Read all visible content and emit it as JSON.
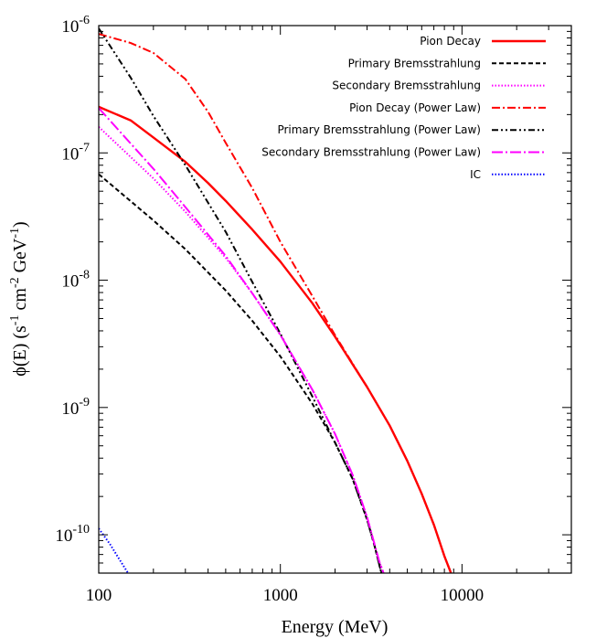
{
  "chart_data": {
    "type": "line",
    "x_scale": "log",
    "y_scale": "log",
    "xlim": [
      100,
      40000
    ],
    "ylim": [
      5e-11,
      1e-06
    ],
    "xlabel": "Energy  (MeV)",
    "ylabel": {
      "main": "ϕ(E)  (s",
      "exp1": "-1",
      "mid1": " cm",
      "exp2": "-2",
      "mid2": " GeV",
      "exp3": "-1",
      "close": ")"
    },
    "x_ticks": [
      {
        "value": 100,
        "label": "100"
      },
      {
        "value": 1000,
        "label": "1000"
      },
      {
        "value": 10000,
        "label": "10000"
      }
    ],
    "y_ticks": [
      {
        "value": 1e-06,
        "base": "10",
        "exp": "-6"
      },
      {
        "value": 1e-07,
        "base": "10",
        "exp": "-7"
      },
      {
        "value": 1e-08,
        "base": "10",
        "exp": "-8"
      },
      {
        "value": 1e-09,
        "base": "10",
        "exp": "-9"
      },
      {
        "value": 1e-10,
        "base": "10",
        "exp": "-10"
      }
    ],
    "grid": false,
    "legend_position": "top-right",
    "series": [
      {
        "name": "Pion Decay",
        "color": "#ff0000",
        "dash": "solid",
        "points": [
          [
            100,
            2.3e-07
          ],
          [
            150,
            1.8e-07
          ],
          [
            200,
            1.32e-07
          ],
          [
            300,
            8.5e-08
          ],
          [
            400,
            5.8e-08
          ],
          [
            500,
            4.2e-08
          ],
          [
            700,
            2.5e-08
          ],
          [
            1000,
            1.4e-08
          ],
          [
            1500,
            6.6e-09
          ],
          [
            2000,
            3.6e-09
          ],
          [
            3000,
            1.45e-09
          ],
          [
            4000,
            7.2e-10
          ],
          [
            5000,
            3.8e-10
          ],
          [
            6000,
            2.1e-10
          ],
          [
            7000,
            1.2e-10
          ],
          [
            8000,
            6.8e-11
          ],
          [
            8700,
            5e-11
          ]
        ]
      },
      {
        "name": "Primary Bremsstrahlung",
        "color": "#000000",
        "dash": "dashed",
        "points": [
          [
            100,
            6.8e-08
          ],
          [
            200,
            2.95e-08
          ],
          [
            300,
            1.75e-08
          ],
          [
            500,
            8.3e-09
          ],
          [
            700,
            4.8e-09
          ],
          [
            1000,
            2.52e-09
          ],
          [
            1500,
            1.07e-09
          ],
          [
            2000,
            5.3e-10
          ],
          [
            2500,
            2.75e-10
          ],
          [
            3000,
            1.32e-10
          ],
          [
            3300,
            8.2e-11
          ],
          [
            3600,
            5e-11
          ]
        ]
      },
      {
        "name": "Secondary Bremsstrahlung",
        "color": "#ff00ff",
        "dash": "dotted",
        "points": [
          [
            100,
            1.6e-07
          ],
          [
            200,
            6.3e-08
          ],
          [
            300,
            3.45e-08
          ],
          [
            500,
            1.5e-08
          ],
          [
            700,
            7.9e-09
          ],
          [
            1000,
            3.72e-09
          ],
          [
            1500,
            1.38e-09
          ],
          [
            2000,
            6.2e-10
          ],
          [
            2500,
            2.95e-10
          ],
          [
            3000,
            1.38e-10
          ],
          [
            3500,
            6.2e-11
          ],
          [
            3700,
            5e-11
          ]
        ]
      },
      {
        "name": "Pion Decay (Power Law)",
        "color": "#ff0000",
        "dash": "dashdot",
        "points": [
          [
            100,
            8.6e-07
          ],
          [
            150,
            7.3e-07
          ],
          [
            200,
            6.1e-07
          ],
          [
            300,
            3.8e-07
          ],
          [
            400,
            2.1e-07
          ],
          [
            500,
            1.2e-07
          ],
          [
            700,
            5.3e-08
          ],
          [
            1000,
            2e-08
          ],
          [
            1500,
            7.5e-09
          ],
          [
            2000,
            3.7e-09
          ],
          [
            3000,
            1.45e-09
          ],
          [
            4000,
            7.2e-10
          ],
          [
            5000,
            3.8e-10
          ],
          [
            6000,
            2.1e-10
          ],
          [
            7000,
            1.2e-10
          ],
          [
            8000,
            6.8e-11
          ],
          [
            8700,
            5e-11
          ]
        ]
      },
      {
        "name": "Primary Bremsstrahlung (Power Law)",
        "color": "#000000",
        "dash": "dashdotdot",
        "points": [
          [
            100,
            9.5e-07
          ],
          [
            150,
            3.9e-07
          ],
          [
            200,
            1.95e-07
          ],
          [
            300,
            8e-08
          ],
          [
            500,
            2.4e-08
          ],
          [
            700,
            9.7e-09
          ],
          [
            1000,
            3.8e-09
          ],
          [
            1500,
            1.22e-09
          ],
          [
            2000,
            5.3e-10
          ],
          [
            2500,
            2.75e-10
          ],
          [
            3000,
            1.32e-10
          ],
          [
            3300,
            8.2e-11
          ],
          [
            3600,
            5e-11
          ]
        ]
      },
      {
        "name": "Secondary Bremsstrahlung (Power Law)",
        "color": "#ff00ff",
        "dash": "dashdotlong",
        "points": [
          [
            100,
            2.25e-07
          ],
          [
            200,
            7.5e-08
          ],
          [
            300,
            3.75e-08
          ],
          [
            500,
            1.55e-08
          ],
          [
            700,
            7.9e-09
          ],
          [
            1000,
            3.72e-09
          ],
          [
            1500,
            1.38e-09
          ],
          [
            2000,
            6.2e-10
          ],
          [
            2500,
            2.95e-10
          ],
          [
            3000,
            1.38e-10
          ],
          [
            3500,
            6.2e-11
          ],
          [
            3700,
            5e-11
          ]
        ]
      },
      {
        "name": "IC",
        "color": "#0000ff",
        "dash": "dotted",
        "points": [
          [
            100,
            1.12e-10
          ],
          [
            115,
            8.5e-11
          ],
          [
            130,
            6.4e-11
          ],
          [
            145,
            5e-11
          ]
        ]
      }
    ]
  }
}
